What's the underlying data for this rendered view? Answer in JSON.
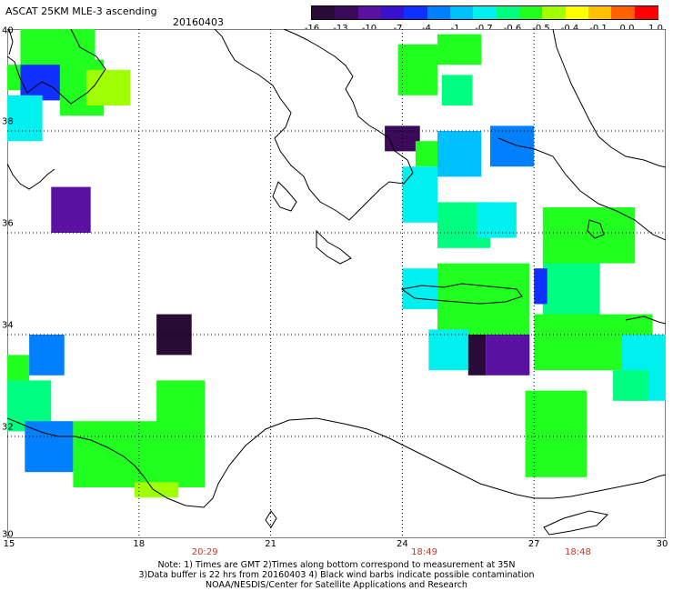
{
  "header": {
    "title": "ASCAT 25KM MLE-3 ascending",
    "date": "20160403"
  },
  "colorbar": {
    "labels": [
      "-16",
      "-13",
      "-10",
      "-7",
      "-4",
      "-1",
      "-0.7",
      "-0.6",
      "-0.5",
      "-0.4",
      "-0.1",
      "0.0",
      "1.0"
    ],
    "colors": [
      "#2a0a36",
      "#3b0a5a",
      "#5a10a0",
      "#3a10d0",
      "#1030ff",
      "#0080ff",
      "#00c0ff",
      "#00f0f0",
      "#00ff80",
      "#20ff20",
      "#a0ff00",
      "#ffff00",
      "#ffc000",
      "#ff6000",
      "#ff0000"
    ]
  },
  "axes": {
    "lat_labels": [
      "40",
      "38",
      "36",
      "34",
      "32",
      "30"
    ],
    "lon_labels": [
      "15",
      "18",
      "21",
      "24",
      "27",
      "30"
    ],
    "lat_range": [
      30,
      40
    ],
    "lon_range": [
      15,
      30
    ],
    "grid": true
  },
  "times": [
    "20:29",
    "18:49",
    "18:48"
  ],
  "notes": [
    "Note: 1) Times are GMT 2)Times along bottom correspond to measurement at 35N",
    "3)Data buffer is 22 hrs from 20160403 4) Black wind barbs indicate possible contamination",
    "NOAA/NESDIS/Center for Satellite Applications and Research"
  ],
  "chart_data": {
    "type": "heatmap",
    "title": "ASCAT 25KM MLE-3 ascending",
    "xlabel": "",
    "ylabel": "",
    "xlim": [
      15,
      30
    ],
    "ylim": [
      30,
      40
    ],
    "cells": [
      {
        "lon0": 15.0,
        "lon1": 15.3,
        "lat0": 38.8,
        "lat1": 39.3,
        "color": "#20ff20"
      },
      {
        "lon0": 15.3,
        "lon1": 16.2,
        "lat0": 38.6,
        "lat1": 39.5,
        "color": "#1030ff"
      },
      {
        "lon0": 16.2,
        "lon1": 17.2,
        "lat0": 38.3,
        "lat1": 39.4,
        "color": "#20ff20"
      },
      {
        "lon0": 16.8,
        "lon1": 17.8,
        "lat0": 38.5,
        "lat1": 39.2,
        "color": "#a0ff00"
      },
      {
        "lon0": 15.3,
        "lon1": 17.0,
        "lat0": 39.3,
        "lat1": 40.0,
        "color": "#20ff20"
      },
      {
        "lon0": 15.0,
        "lon1": 15.8,
        "lat0": 37.8,
        "lat1": 38.7,
        "color": "#00f0f0"
      },
      {
        "lon0": 16.0,
        "lon1": 16.9,
        "lat0": 36.0,
        "lat1": 36.9,
        "color": "#5a10a0"
      },
      {
        "lon0": 18.4,
        "lon1": 19.2,
        "lat0": 33.6,
        "lat1": 34.4,
        "color": "#2a0a36"
      },
      {
        "lon0": 15.0,
        "lon1": 15.5,
        "lat0": 32.9,
        "lat1": 33.6,
        "color": "#20ff20"
      },
      {
        "lon0": 15.5,
        "lon1": 16.3,
        "lat0": 33.2,
        "lat1": 34.0,
        "color": "#0080ff"
      },
      {
        "lon0": 15.0,
        "lon1": 16.0,
        "lat0": 32.1,
        "lat1": 33.1,
        "color": "#00ff80"
      },
      {
        "lon0": 15.4,
        "lon1": 16.5,
        "lat0": 31.3,
        "lat1": 32.3,
        "color": "#0080ff"
      },
      {
        "lon0": 16.5,
        "lon1": 19.0,
        "lat0": 31.0,
        "lat1": 32.3,
        "color": "#20ff20"
      },
      {
        "lon0": 18.4,
        "lon1": 19.5,
        "lat0": 31.0,
        "lat1": 33.1,
        "color": "#20ff20"
      },
      {
        "lon0": 17.9,
        "lon1": 18.9,
        "lat0": 30.8,
        "lat1": 31.1,
        "color": "#a0ff00"
      },
      {
        "lon0": 24.8,
        "lon1": 25.8,
        "lat0": 39.3,
        "lat1": 39.9,
        "color": "#20ff20"
      },
      {
        "lon0": 23.9,
        "lon1": 24.8,
        "lat0": 38.7,
        "lat1": 39.7,
        "color": "#20ff20"
      },
      {
        "lon0": 24.9,
        "lon1": 25.6,
        "lat0": 38.5,
        "lat1": 39.1,
        "color": "#00ff80"
      },
      {
        "lon0": 23.6,
        "lon1": 24.4,
        "lat0": 37.6,
        "lat1": 38.1,
        "color": "#3b0a5a"
      },
      {
        "lon0": 24.3,
        "lon1": 25.0,
        "lat0": 37.3,
        "lat1": 37.8,
        "color": "#20ff20"
      },
      {
        "lon0": 24.8,
        "lon1": 25.8,
        "lat0": 37.1,
        "lat1": 38.0,
        "color": "#00c0ff"
      },
      {
        "lon0": 26.0,
        "lon1": 27.0,
        "lat0": 37.3,
        "lat1": 38.1,
        "color": "#0080ff"
      },
      {
        "lon0": 24.0,
        "lon1": 24.8,
        "lat0": 36.2,
        "lat1": 37.3,
        "color": "#00f0f0"
      },
      {
        "lon0": 24.8,
        "lon1": 26.0,
        "lat0": 35.7,
        "lat1": 36.6,
        "color": "#00ff80"
      },
      {
        "lon0": 25.7,
        "lon1": 26.6,
        "lat0": 35.9,
        "lat1": 36.6,
        "color": "#00f0f0"
      },
      {
        "lon0": 24.0,
        "lon1": 24.8,
        "lat0": 34.5,
        "lat1": 35.3,
        "color": "#00f0f0"
      },
      {
        "lon0": 24.8,
        "lon1": 26.9,
        "lat0": 34.0,
        "lat1": 35.4,
        "color": "#20ff20"
      },
      {
        "lon0": 24.6,
        "lon1": 25.5,
        "lat0": 33.3,
        "lat1": 34.1,
        "color": "#00f0f0"
      },
      {
        "lon0": 25.5,
        "lon1": 25.9,
        "lat0": 33.2,
        "lat1": 34.0,
        "color": "#2a0a36"
      },
      {
        "lon0": 25.9,
        "lon1": 26.9,
        "lat0": 33.2,
        "lat1": 34.0,
        "color": "#5a10a0"
      },
      {
        "lon0": 27.2,
        "lon1": 28.5,
        "lat0": 34.3,
        "lat1": 35.6,
        "color": "#00ff80"
      },
      {
        "lon0": 27.0,
        "lon1": 27.3,
        "lat0": 34.6,
        "lat1": 35.3,
        "color": "#1030ff"
      },
      {
        "lon0": 27.2,
        "lon1": 29.3,
        "lat0": 35.4,
        "lat1": 36.5,
        "color": "#20ff20"
      },
      {
        "lon0": 27.0,
        "lon1": 29.7,
        "lat0": 33.3,
        "lat1": 34.4,
        "color": "#20ff20"
      },
      {
        "lon0": 29.0,
        "lon1": 30.0,
        "lat0": 32.7,
        "lat1": 34.0,
        "color": "#00f0f0"
      },
      {
        "lon0": 28.8,
        "lon1": 29.6,
        "lat0": 32.7,
        "lat1": 33.3,
        "color": "#00ff80"
      },
      {
        "lon0": 26.8,
        "lon1": 28.2,
        "lat0": 31.2,
        "lat1": 32.9,
        "color": "#20ff20"
      }
    ]
  }
}
